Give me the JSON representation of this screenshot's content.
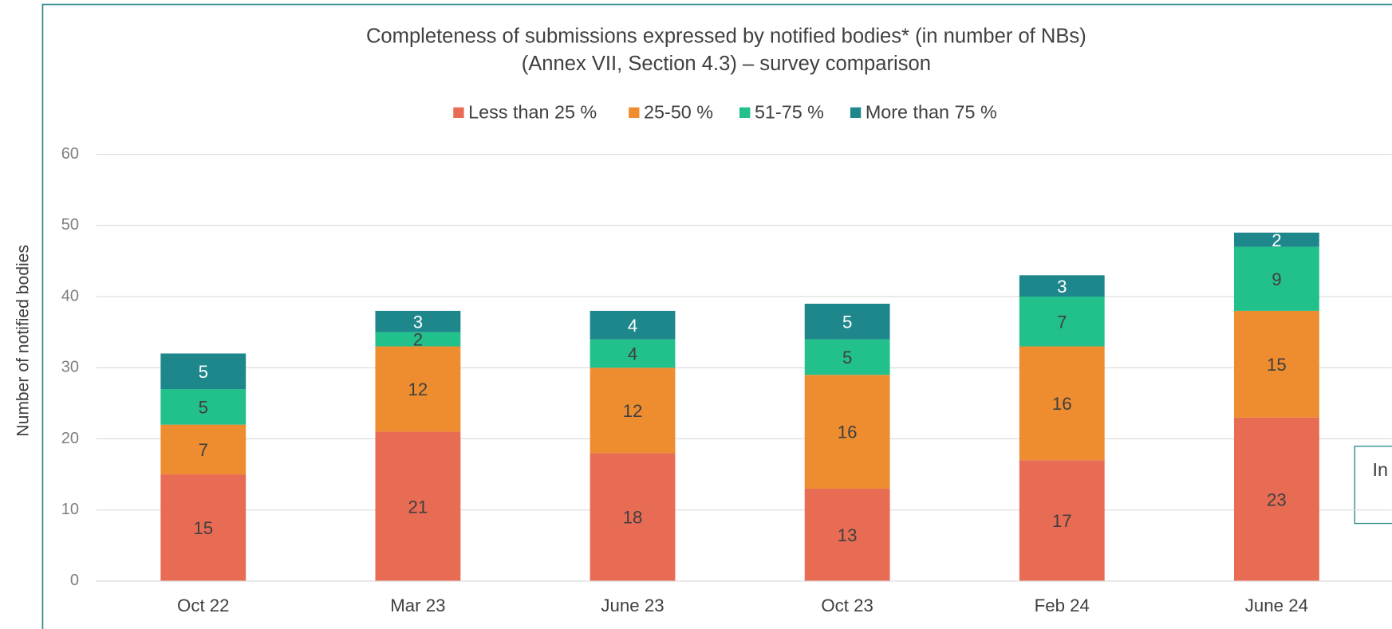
{
  "chart_data": {
    "type": "stacked_bar",
    "title": "Completeness of submissions expressed by notified bodies* (in number of NBs)",
    "subtitle": "(Annex VII, Section 4.3) – survey comparison",
    "y_label": "Number of notified bodies",
    "annotation": "In",
    "categories": [
      "Oct 22",
      "Mar 23",
      "June 23",
      "Oct 23",
      "Feb 24",
      "June 24"
    ],
    "series": [
      {
        "name": "Less than 25 %",
        "color": "#e86b54",
        "values": [
          15,
          21,
          18,
          13,
          17,
          23
        ]
      },
      {
        "name": "25-50 %",
        "color": "#ee8c30",
        "values": [
          7,
          12,
          12,
          16,
          16,
          15
        ]
      },
      {
        "name": "51-75 %",
        "color": "#22c08a",
        "values": [
          5,
          2,
          4,
          5,
          7,
          9
        ]
      },
      {
        "name": "More than 75 %",
        "color": "#1e878c",
        "values": [
          5,
          3,
          4,
          5,
          3,
          2
        ]
      }
    ],
    "ylim": [
      0,
      60
    ],
    "yticks": [
      0,
      10,
      20,
      30,
      40,
      50,
      60
    ],
    "grid": true,
    "legend": "top"
  }
}
